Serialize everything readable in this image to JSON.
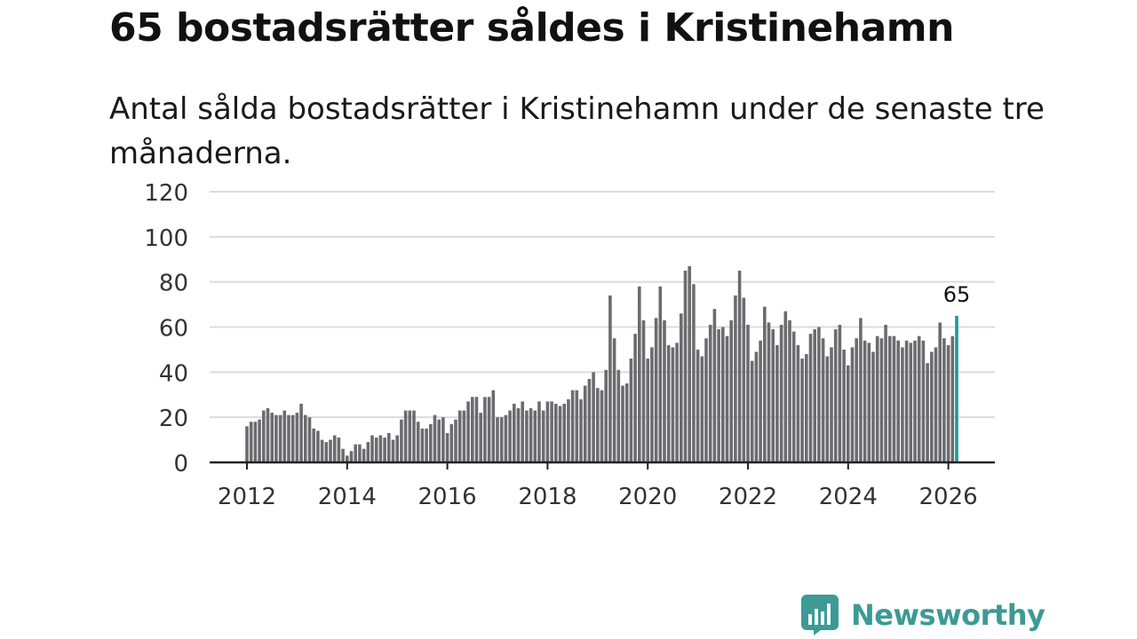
{
  "title": "65 bostadsrätter såldes i Kristinehamn",
  "subtitle": "Antal sålda bostadsrätter i Kristinehamn under de senaste tre månaderna.",
  "brand": {
    "name": "Newsworthy",
    "color": "#3d9a95",
    "icon": "newsworthy-logo-icon"
  },
  "colors": {
    "bar": "#6b6b70",
    "highlight": "#1a9a98",
    "grid": "#dcdcdc",
    "axis": "#222222"
  },
  "chart_data": {
    "type": "bar",
    "xlabel": "",
    "ylabel": "",
    "ylim": [
      0,
      120
    ],
    "yticks": [
      "0",
      "20",
      "40",
      "60",
      "80",
      "100",
      "120"
    ],
    "xticks": [
      "2012",
      "2014",
      "2016",
      "2018",
      "2020",
      "2022",
      "2024",
      "2026"
    ],
    "x_start": "2012-01",
    "grid": true,
    "highlight_label": "65",
    "series": [
      {
        "name": "Antal sålda bostadsrätter",
        "values": [
          16,
          18,
          18,
          19,
          23,
          24,
          22,
          21,
          21,
          23,
          21,
          21,
          22,
          26,
          21,
          20,
          15,
          14,
          10,
          9,
          10,
          12,
          11,
          6,
          3,
          5,
          8,
          8,
          6,
          9,
          12,
          11,
          12,
          11,
          13,
          10,
          12,
          19,
          23,
          23,
          23,
          18,
          15,
          15,
          17,
          21,
          19,
          20,
          13,
          17,
          19,
          23,
          23,
          27,
          29,
          29,
          22,
          29,
          29,
          32,
          20,
          20,
          21,
          23,
          26,
          24,
          27,
          23,
          24,
          23,
          27,
          23,
          27,
          27,
          26,
          25,
          26,
          28,
          32,
          32,
          28,
          34,
          37,
          40,
          33,
          32,
          41,
          74,
          55,
          41,
          34,
          35,
          46,
          57,
          78,
          63,
          46,
          51,
          64,
          78,
          63,
          52,
          51,
          53,
          66,
          85,
          87,
          79,
          50,
          47,
          55,
          61,
          68,
          59,
          60,
          56,
          63,
          74,
          85,
          73,
          61,
          45,
          49,
          54,
          69,
          62,
          59,
          52,
          61,
          67,
          63,
          58,
          52,
          46,
          48,
          57,
          59,
          60,
          55,
          47,
          51,
          59,
          61,
          50,
          43,
          51,
          55,
          64,
          54,
          53,
          49,
          56,
          55,
          61,
          56,
          56,
          54,
          51,
          54,
          53,
          54,
          56,
          54,
          44,
          49,
          51,
          62,
          55,
          52,
          56,
          65
        ]
      }
    ]
  }
}
